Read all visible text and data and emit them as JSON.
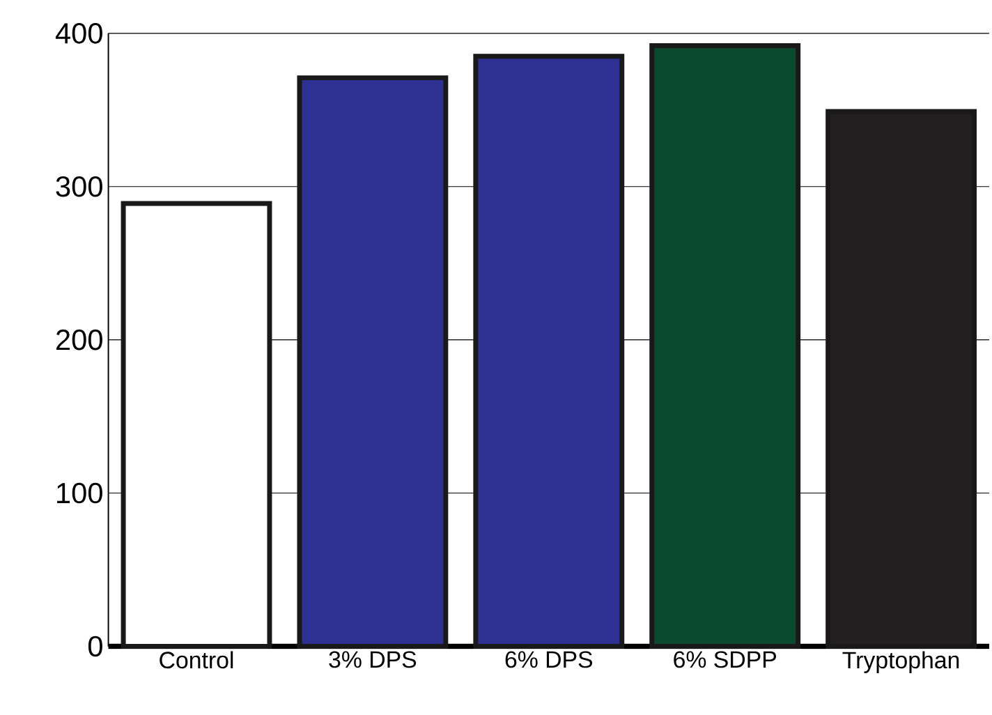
{
  "chart_data": {
    "type": "bar",
    "categories": [
      "Control",
      "3% DPS",
      "6% DPS",
      "6% SDPP",
      "Tryptophan"
    ],
    "values": [
      289,
      371,
      385,
      392,
      349
    ],
    "colors": [
      "#ffffff",
      "#2e3192",
      "#2e3192",
      "#0b4a2e",
      "#231f20"
    ],
    "ylim": [
      0,
      400
    ],
    "yticks": [
      0,
      100,
      200,
      300,
      400
    ],
    "grid": "y"
  }
}
